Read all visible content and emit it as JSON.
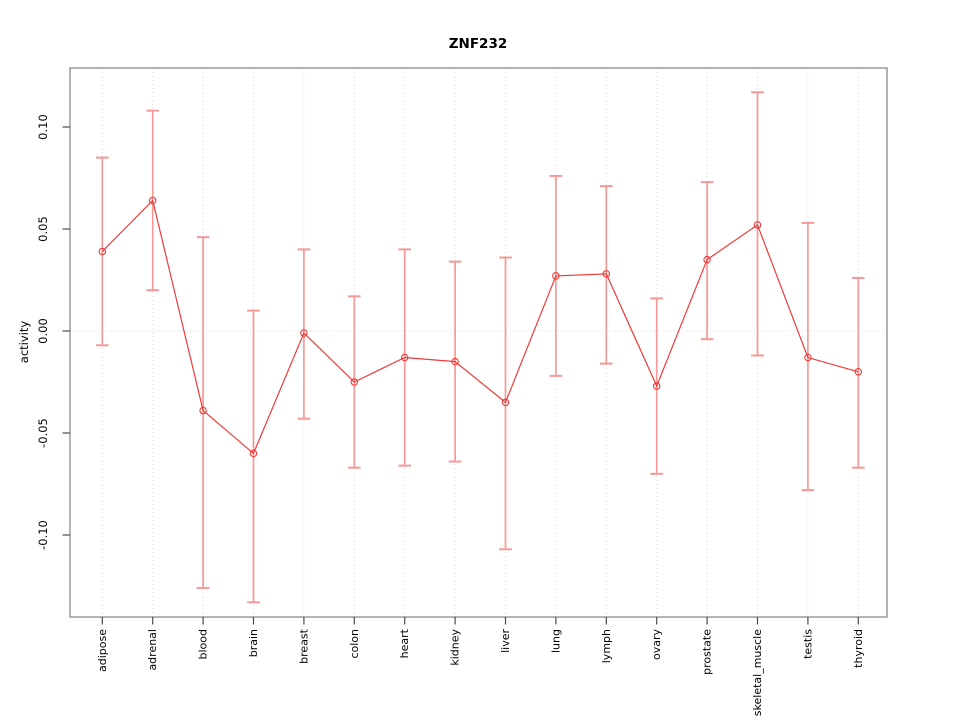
{
  "chart_data": {
    "type": "line",
    "title": "ZNF232",
    "xlabel": "",
    "ylabel": "activity",
    "legend_position": "none",
    "categories": [
      "adipose",
      "adrenal",
      "blood",
      "brain",
      "breast",
      "colon",
      "heart",
      "kidney",
      "liver",
      "lung",
      "lymph",
      "ovary",
      "prostate",
      "skeletal_muscle",
      "testis",
      "thyroid"
    ],
    "series": [
      {
        "name": "ZNF232 activity",
        "mean": [
          0.039,
          0.064,
          -0.039,
          -0.06,
          -0.001,
          -0.025,
          -0.013,
          -0.015,
          -0.035,
          0.027,
          0.028,
          -0.027,
          0.035,
          0.052,
          -0.013,
          -0.02
        ],
        "ci_upper": [
          0.085,
          0.108,
          0.046,
          0.01,
          0.04,
          0.017,
          0.04,
          0.034,
          0.036,
          0.076,
          0.071,
          0.016,
          0.073,
          0.117,
          0.053,
          0.026
        ],
        "ci_lower": [
          -0.007,
          0.02,
          -0.126,
          -0.133,
          -0.043,
          -0.067,
          -0.066,
          -0.064,
          -0.107,
          -0.022,
          -0.016,
          -0.07,
          -0.004,
          -0.012,
          -0.078,
          -0.067
        ]
      }
    ],
    "y_ticks": [
      {
        "label": "0.10",
        "value": 0.1
      },
      {
        "label": "0.05",
        "value": 0.05
      },
      {
        "label": "0.00",
        "value": 0.0
      },
      {
        "label": "-0.05",
        "value": -0.05
      },
      {
        "label": "-0.10",
        "value": -0.1
      }
    ],
    "ylim": [
      -0.14,
      0.129
    ],
    "grid": "dotted vertical line at every category; dotted horizontal line at y=0 only",
    "marker": "open-circle",
    "colors": {
      "point_line": "#ef3b3b",
      "error_bar": "#f59898",
      "gridline": "#d9d9d9",
      "axis_box": "#9a9a9a",
      "tick": "#4d4d4d",
      "text": "#000000",
      "background": "#ffffff"
    }
  }
}
